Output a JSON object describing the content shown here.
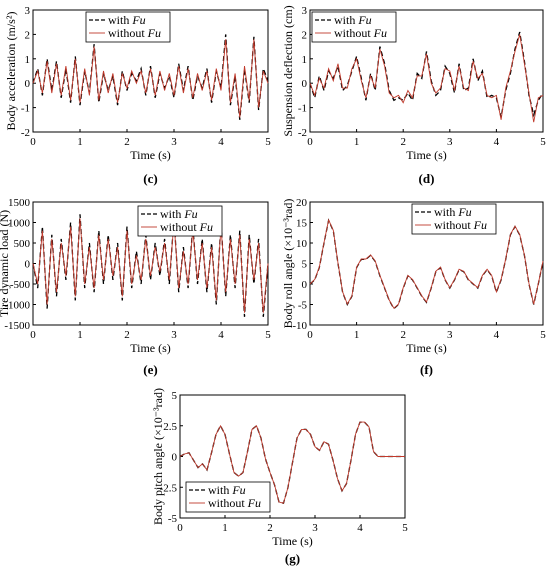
{
  "legend": {
    "series_a": "with ",
    "series_b": "without ",
    "var": "Fu"
  },
  "colors": {
    "with": "#000000",
    "without": "#c0392b"
  },
  "chart_data": [
    {
      "id": "c",
      "type": "line",
      "caption": "(c)",
      "xlabel": "Time (s)",
      "ylabel": "Body acceleration (m/s²)",
      "xlim": [
        0,
        5
      ],
      "ylim": [
        -2,
        3
      ],
      "xticks": [
        0,
        1,
        2,
        3,
        4,
        5
      ],
      "yticks": [
        -2,
        -1,
        0,
        1,
        2,
        3
      ],
      "ytick_labels": [
        "-2",
        "-1",
        "0",
        "1",
        "2",
        "3"
      ],
      "x": [
        0,
        0.1,
        0.2,
        0.3,
        0.4,
        0.5,
        0.6,
        0.7,
        0.8,
        0.9,
        1.0,
        1.1,
        1.2,
        1.3,
        1.4,
        1.5,
        1.6,
        1.7,
        1.8,
        1.9,
        2.0,
        2.1,
        2.2,
        2.3,
        2.4,
        2.5,
        2.6,
        2.7,
        2.8,
        2.9,
        3.0,
        3.1,
        3.2,
        3.3,
        3.4,
        3.5,
        3.6,
        3.7,
        3.8,
        3.9,
        4.0,
        4.1,
        4.2,
        4.3,
        4.4,
        4.5,
        4.6,
        4.7,
        4.8,
        4.9,
        5.0
      ],
      "series": [
        {
          "name": "with Fu",
          "values": [
            0,
            0.6,
            -0.5,
            1.0,
            -0.3,
            0.9,
            -0.6,
            0.6,
            -0.8,
            1.1,
            -0.9,
            0.5,
            -0.4,
            1.6,
            -0.8,
            0.4,
            -0.3,
            0.3,
            -0.9,
            0.5,
            -0.3,
            0.4,
            0.1,
            0.6,
            -0.5,
            0.7,
            -0.6,
            0.4,
            -0.2,
            0.3,
            -0.6,
            0.8,
            -0.3,
            0.7,
            -0.7,
            0.3,
            -0.2,
            0.6,
            -0.8,
            0.5,
            -0.2,
            2.0,
            -0.9,
            0.3,
            -1.5,
            0.6,
            -0.8,
            1.9,
            -1.1,
            0.6,
            0.1
          ]
        },
        {
          "name": "without Fu",
          "values": [
            0,
            0.5,
            -0.4,
            0.9,
            -0.4,
            0.8,
            -0.5,
            0.7,
            -0.7,
            1.0,
            -0.8,
            0.6,
            -0.5,
            1.5,
            -0.7,
            0.5,
            -0.4,
            0.4,
            -0.8,
            0.4,
            -0.2,
            0.5,
            0.0,
            0.5,
            -0.4,
            0.6,
            -0.5,
            0.5,
            -0.3,
            0.4,
            -0.5,
            0.7,
            -0.4,
            0.6,
            -0.6,
            0.4,
            -0.3,
            0.5,
            -0.7,
            0.6,
            -0.3,
            1.8,
            -0.8,
            0.4,
            -1.4,
            0.7,
            -0.7,
            1.8,
            -1.0,
            0.5,
            0.0
          ]
        }
      ]
    },
    {
      "id": "d",
      "type": "line",
      "caption": "(d)",
      "xlabel": "Time (s)",
      "ylabel": "Suspension deflection (cm)",
      "xlim": [
        0,
        5
      ],
      "ylim": [
        -2,
        3
      ],
      "xticks": [
        0,
        1,
        2,
        3,
        4,
        5
      ],
      "yticks": [
        -2,
        -1,
        0,
        1,
        2,
        3
      ],
      "ytick_labels": [
        "-2",
        "-1",
        "0",
        "1",
        "2",
        "3"
      ],
      "x": [
        0,
        0.1,
        0.2,
        0.3,
        0.4,
        0.5,
        0.6,
        0.7,
        0.8,
        0.9,
        1.0,
        1.1,
        1.2,
        1.3,
        1.4,
        1.5,
        1.6,
        1.7,
        1.8,
        1.9,
        2.0,
        2.1,
        2.2,
        2.3,
        2.4,
        2.5,
        2.6,
        2.7,
        2.8,
        2.9,
        3.0,
        3.1,
        3.2,
        3.3,
        3.4,
        3.5,
        3.6,
        3.7,
        3.8,
        3.9,
        4.0,
        4.1,
        4.2,
        4.3,
        4.4,
        4.5,
        4.6,
        4.7,
        4.8,
        4.9,
        5.0
      ],
      "series": [
        {
          "name": "with Fu",
          "values": [
            0,
            -0.6,
            0.3,
            -0.3,
            0.5,
            0.2,
            0.7,
            -0.3,
            -0.1,
            0.5,
            1.1,
            0.2,
            -0.7,
            0.4,
            -0.3,
            1.5,
            0.8,
            -0.3,
            -0.7,
            -0.6,
            -0.7,
            -0.4,
            -0.7,
            0.4,
            0.2,
            1.3,
            0.1,
            -0.5,
            -0.3,
            0.7,
            0.4,
            -0.4,
            0.8,
            -0.3,
            -0.2,
            1.0,
            0.1,
            0.5,
            -0.6,
            -0.5,
            -0.6,
            -1.4,
            -0.3,
            0.4,
            1.4,
            2.1,
            0.9,
            -0.5,
            -1.3,
            -0.7,
            -0.4
          ]
        },
        {
          "name": "without Fu",
          "values": [
            0,
            -0.5,
            0.2,
            -0.2,
            0.6,
            0.1,
            0.8,
            -0.2,
            -0.2,
            0.6,
            1.0,
            0.1,
            -0.6,
            0.3,
            -0.2,
            1.4,
            0.7,
            -0.4,
            -0.6,
            -0.5,
            -0.8,
            -0.3,
            -0.6,
            0.3,
            0.3,
            1.2,
            0.0,
            -0.4,
            -0.2,
            0.6,
            0.5,
            -0.3,
            0.7,
            -0.2,
            -0.3,
            0.9,
            0.2,
            0.4,
            -0.5,
            -0.6,
            -0.5,
            -1.5,
            -0.2,
            0.5,
            1.3,
            2.0,
            0.8,
            -0.4,
            -1.6,
            -0.6,
            -0.5
          ]
        }
      ]
    },
    {
      "id": "e",
      "type": "line",
      "caption": "(e)",
      "xlabel": "Time (s)",
      "ylabel": "Tire dynamic load (N)",
      "xlim": [
        0,
        5
      ],
      "ylim": [
        -1500,
        1500
      ],
      "xticks": [
        0,
        1,
        2,
        3,
        4,
        5
      ],
      "yticks": [
        -1500,
        -1000,
        -500,
        0,
        500,
        1000,
        1500
      ],
      "ytick_labels": [
        "-1500",
        "-1000",
        "-500",
        "0",
        "500",
        "1000",
        "1500"
      ],
      "x": [
        0,
        0.1,
        0.2,
        0.3,
        0.4,
        0.5,
        0.6,
        0.7,
        0.8,
        0.9,
        1.0,
        1.1,
        1.2,
        1.3,
        1.4,
        1.5,
        1.6,
        1.7,
        1.8,
        1.9,
        2.0,
        2.1,
        2.2,
        2.3,
        2.4,
        2.5,
        2.6,
        2.7,
        2.8,
        2.9,
        3.0,
        3.1,
        3.2,
        3.3,
        3.4,
        3.5,
        3.6,
        3.7,
        3.8,
        3.9,
        4.0,
        4.1,
        4.2,
        4.3,
        4.4,
        4.5,
        4.6,
        4.7,
        4.8,
        4.9,
        5.0
      ],
      "series": [
        {
          "name": "with Fu",
          "values": [
            0,
            -600,
            900,
            -1100,
            700,
            -800,
            600,
            -400,
            1000,
            -900,
            1200,
            -600,
            500,
            -700,
            800,
            -500,
            700,
            -400,
            500,
            -900,
            900,
            -600,
            300,
            -500,
            700,
            -400,
            500,
            -300,
            600,
            -500,
            1100,
            -700,
            400,
            -600,
            900,
            -500,
            600,
            -700,
            500,
            -1000,
            1000,
            -800,
            700,
            -600,
            800,
            -1300,
            700,
            -500,
            600,
            -1300,
            0
          ]
        },
        {
          "name": "without Fu",
          "values": [
            0,
            -500,
            800,
            -1000,
            600,
            -700,
            500,
            -300,
            900,
            -800,
            1100,
            -500,
            400,
            -600,
            700,
            -400,
            600,
            -300,
            400,
            -800,
            800,
            -500,
            200,
            -400,
            600,
            -300,
            400,
            -200,
            500,
            -400,
            1000,
            -600,
            300,
            -500,
            800,
            -400,
            500,
            -600,
            400,
            -900,
            900,
            -700,
            600,
            -500,
            700,
            -1200,
            600,
            -400,
            500,
            -1200,
            0
          ]
        }
      ]
    },
    {
      "id": "f",
      "type": "line",
      "caption": "(f)",
      "xlabel": "Time (s)",
      "ylabel": "Body roll angle (×10⁻³rad)",
      "xlim": [
        0,
        5
      ],
      "ylim": [
        -10,
        20
      ],
      "xticks": [
        0,
        1,
        2,
        3,
        4,
        5
      ],
      "yticks": [
        -10,
        -5,
        0,
        5,
        10,
        15,
        20
      ],
      "ytick_labels": [
        "-10",
        "-5",
        "0",
        "5",
        "10",
        "15",
        "20"
      ],
      "x": [
        0,
        0.1,
        0.2,
        0.3,
        0.4,
        0.5,
        0.6,
        0.7,
        0.8,
        0.9,
        1.0,
        1.1,
        1.2,
        1.3,
        1.4,
        1.5,
        1.6,
        1.7,
        1.8,
        1.9,
        2.0,
        2.1,
        2.2,
        2.3,
        2.4,
        2.5,
        2.6,
        2.7,
        2.8,
        2.9,
        3.0,
        3.1,
        3.2,
        3.3,
        3.4,
        3.5,
        3.6,
        3.7,
        3.8,
        3.9,
        4.0,
        4.1,
        4.2,
        4.3,
        4.4,
        4.5,
        4.6,
        4.7,
        4.8,
        4.9,
        5.0
      ],
      "series": [
        {
          "name": "with Fu",
          "values": [
            0,
            1,
            4,
            10,
            15.5,
            13,
            5,
            -2,
            -5,
            -3,
            4,
            6,
            6,
            7,
            5.5,
            2,
            -1,
            -4,
            -6,
            -5,
            -1,
            2,
            1,
            -1,
            -3,
            -4.5,
            -1,
            3,
            4,
            1,
            -1,
            1,
            3.5,
            3,
            1,
            0,
            -1,
            2,
            3.5,
            2,
            -2,
            1,
            6,
            12,
            14,
            12,
            7,
            0,
            -5,
            0,
            5.5
          ]
        },
        {
          "name": "without Fu",
          "values": [
            0,
            1.1,
            4.1,
            10.1,
            15.6,
            13.1,
            5.1,
            -1.9,
            -4.9,
            -2.9,
            4.1,
            6.1,
            6.1,
            7.1,
            5.6,
            2.1,
            -0.9,
            -3.9,
            -5.9,
            -4.9,
            -0.9,
            2.1,
            1.1,
            -0.9,
            -2.9,
            -4.4,
            -0.9,
            3.1,
            4.1,
            1.1,
            -0.9,
            1.1,
            3.6,
            3.1,
            1.1,
            0.1,
            -0.9,
            2.1,
            3.6,
            2.1,
            -1.9,
            1.1,
            6.1,
            12.1,
            14.1,
            12.1,
            7.1,
            0.1,
            -4.9,
            0.1,
            5.6
          ]
        }
      ]
    },
    {
      "id": "g",
      "type": "line",
      "caption": "(g)",
      "xlabel": "Time (s)",
      "ylabel": "Body pitch angle (×10⁻³rad)",
      "xlim": [
        0,
        5
      ],
      "ylim": [
        -5,
        5
      ],
      "xticks": [
        0,
        1,
        2,
        3,
        4,
        5
      ],
      "yticks": [
        -5,
        -2.5,
        0,
        2.5,
        5
      ],
      "ytick_labels": [
        "-5",
        "-2.5",
        "0",
        "2.5",
        "5"
      ],
      "x": [
        0,
        0.1,
        0.2,
        0.3,
        0.4,
        0.5,
        0.6,
        0.7,
        0.8,
        0.9,
        1.0,
        1.1,
        1.2,
        1.3,
        1.4,
        1.5,
        1.6,
        1.7,
        1.8,
        1.9,
        2.0,
        2.1,
        2.2,
        2.3,
        2.4,
        2.5,
        2.6,
        2.7,
        2.8,
        2.9,
        3.0,
        3.1,
        3.2,
        3.3,
        3.4,
        3.5,
        3.6,
        3.7,
        3.8,
        3.9,
        4.0,
        4.1,
        4.2,
        4.3,
        4.4,
        4.5,
        4.6,
        4.7,
        4.8,
        4.9,
        5.0
      ],
      "series": [
        {
          "name": "with Fu",
          "values": [
            0,
            0.2,
            0.3,
            -0.3,
            -0.9,
            -0.6,
            -1.1,
            0.3,
            1.8,
            2.5,
            1.8,
            0.2,
            -1.3,
            -1.6,
            -1.3,
            0.4,
            2.2,
            2.5,
            1.5,
            -0.2,
            -1.3,
            -2.3,
            -3.7,
            -3.8,
            -2.5,
            -0.5,
            1.5,
            2.2,
            2.2,
            1.8,
            0.8,
            0.5,
            1.2,
            1.0,
            -0.3,
            -1.8,
            -2.8,
            -2.2,
            -0.3,
            1.8,
            2.8,
            2.8,
            2.4,
            0.4,
            0.0,
            0.0,
            0.0,
            0.0,
            0.0,
            0.0,
            0.0
          ]
        },
        {
          "name": "without Fu",
          "values": [
            0,
            0.2,
            0.3,
            -0.3,
            -0.9,
            -0.6,
            -1.1,
            0.3,
            1.8,
            2.5,
            1.8,
            0.2,
            -1.3,
            -1.6,
            -1.3,
            0.4,
            2.2,
            2.5,
            1.5,
            -0.2,
            -1.3,
            -2.3,
            -3.7,
            -3.8,
            -2.5,
            -0.5,
            1.5,
            2.2,
            2.2,
            1.8,
            0.8,
            0.5,
            1.2,
            1.0,
            -0.3,
            -1.8,
            -2.8,
            -2.2,
            -0.3,
            1.8,
            2.8,
            2.8,
            2.4,
            0.4,
            0.0,
            0.0,
            0.0,
            0.0,
            0.0,
            0.0,
            0.0
          ]
        }
      ]
    }
  ]
}
